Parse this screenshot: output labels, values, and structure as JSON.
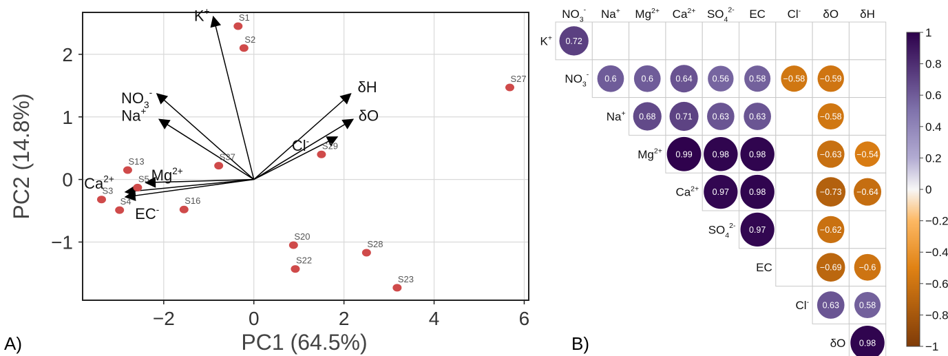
{
  "panel_a": {
    "label": "A)",
    "chart_data": {
      "type": "scatter",
      "xlabel": "PC1 (64.5%)",
      "ylabel": "PC2 (14.8%)",
      "xlim": [
        -3.8,
        6.1
      ],
      "ylim": [
        -1.93,
        2.67
      ],
      "xticks": [
        -2,
        0,
        2,
        4,
        6
      ],
      "yticks": [
        -1,
        0,
        1,
        2
      ],
      "xtick_labels": [
        "−2",
        "0",
        "2",
        "4",
        "6"
      ],
      "ytick_labels": [
        "−1",
        "0",
        "1",
        "2"
      ],
      "grid": true,
      "point_color": "#cf4a4a",
      "points": [
        {
          "name": "S1",
          "x": -0.35,
          "y": 2.45
        },
        {
          "name": "S2",
          "x": -0.22,
          "y": 2.1
        },
        {
          "name": "S27",
          "x": 5.68,
          "y": 1.47
        },
        {
          "name": "S29",
          "x": 1.5,
          "y": 0.4
        },
        {
          "name": "S37",
          "x": -0.78,
          "y": 0.22
        },
        {
          "name": "S13",
          "x": -2.8,
          "y": 0.15
        },
        {
          "name": "S5",
          "x": -2.58,
          "y": -0.13
        },
        {
          "name": "S3",
          "x": -3.38,
          "y": -0.32
        },
        {
          "name": "S4",
          "x": -2.98,
          "y": -0.49
        },
        {
          "name": "S16",
          "x": -1.55,
          "y": -0.48
        },
        {
          "name": "S20",
          "x": 0.88,
          "y": -1.05
        },
        {
          "name": "S22",
          "x": 0.92,
          "y": -1.43
        },
        {
          "name": "S28",
          "x": 2.5,
          "y": -1.17
        },
        {
          "name": "S23",
          "x": 3.18,
          "y": -1.73
        }
      ],
      "loadings": [
        {
          "base": "K",
          "sup": "+",
          "sub": "",
          "x": -0.9,
          "y": 2.6
        },
        {
          "base": "NO",
          "sub": "3",
          "sup": "-",
          "x": -2.15,
          "y": 1.37
        },
        {
          "base": "Na",
          "sup": "+",
          "sub": "",
          "x": -2.1,
          "y": 0.96
        },
        {
          "base": "δH",
          "sup": "",
          "sub": "",
          "x": 2.15,
          "y": 1.37
        },
        {
          "base": "δO",
          "sup": "",
          "sub": "",
          "x": 2.2,
          "y": 0.96
        },
        {
          "base": "Cl",
          "sup": "-",
          "sub": "",
          "x": 1.85,
          "y": 0.68
        },
        {
          "base": "Mg",
          "sup": "2+",
          "sub": "",
          "x": -2.4,
          "y": -0.05
        },
        {
          "base": "Ca",
          "sup": "2+",
          "sub": "",
          "x": -2.85,
          "y": -0.2
        },
        {
          "base": "EC",
          "sup": "-",
          "sub": "",
          "x": -2.85,
          "y": -0.28
        }
      ]
    }
  },
  "panel_b": {
    "label": "B)",
    "chart_data": {
      "type": "heatmap",
      "column_labels": [
        {
          "base": "NO",
          "sub": "3",
          "sup": "-"
        },
        {
          "base": "Na",
          "sub": "",
          "sup": "+"
        },
        {
          "base": "Mg",
          "sub": "",
          "sup": "2+"
        },
        {
          "base": "Ca",
          "sub": "",
          "sup": "2+"
        },
        {
          "base": "SO",
          "sub": "4",
          "sup": "2-"
        },
        {
          "base": "EC",
          "sub": "",
          "sup": ""
        },
        {
          "base": "Cl",
          "sub": "",
          "sup": "-"
        },
        {
          "base": "δO",
          "sub": "",
          "sup": ""
        },
        {
          "base": "δH",
          "sub": "",
          "sup": ""
        }
      ],
      "row_labels": [
        {
          "base": "K",
          "sub": "",
          "sup": "+"
        },
        {
          "base": "NO",
          "sub": "3",
          "sup": "-"
        },
        {
          "base": "Na",
          "sub": "",
          "sup": "+"
        },
        {
          "base": "Mg",
          "sub": "",
          "sup": "2+"
        },
        {
          "base": "Ca",
          "sub": "",
          "sup": "2+"
        },
        {
          "base": "SO",
          "sub": "4",
          "sup": "2-"
        },
        {
          "base": "EC",
          "sub": "",
          "sup": ""
        },
        {
          "base": "Cl",
          "sub": "",
          "sup": "-"
        },
        {
          "base": "δO",
          "sub": "",
          "sup": ""
        }
      ],
      "cells": [
        {
          "row": 0,
          "col": 0,
          "value": 0.72,
          "label": "0.72"
        },
        {
          "row": 1,
          "col": 1,
          "value": 0.6,
          "label": "0.6"
        },
        {
          "row": 1,
          "col": 2,
          "value": 0.6,
          "label": "0.6"
        },
        {
          "row": 1,
          "col": 3,
          "value": 0.64,
          "label": "0.64"
        },
        {
          "row": 1,
          "col": 4,
          "value": 0.56,
          "label": "0.56"
        },
        {
          "row": 1,
          "col": 5,
          "value": 0.58,
          "label": "0.58"
        },
        {
          "row": 1,
          "col": 6,
          "value": -0.58,
          "label": "−0.58"
        },
        {
          "row": 1,
          "col": 7,
          "value": -0.59,
          "label": "−0.59"
        },
        {
          "row": 2,
          "col": 2,
          "value": 0.68,
          "label": "0.68"
        },
        {
          "row": 2,
          "col": 3,
          "value": 0.71,
          "label": "0.71"
        },
        {
          "row": 2,
          "col": 4,
          "value": 0.63,
          "label": "0.63"
        },
        {
          "row": 2,
          "col": 5,
          "value": 0.63,
          "label": "0.63"
        },
        {
          "row": 2,
          "col": 7,
          "value": -0.58,
          "label": "−0.58"
        },
        {
          "row": 3,
          "col": 3,
          "value": 0.99,
          "label": "0.99"
        },
        {
          "row": 3,
          "col": 4,
          "value": 0.98,
          "label": "0.98"
        },
        {
          "row": 3,
          "col": 5,
          "value": 0.98,
          "label": "0.98"
        },
        {
          "row": 3,
          "col": 7,
          "value": -0.63,
          "label": "−0.63"
        },
        {
          "row": 3,
          "col": 8,
          "value": -0.54,
          "label": "−0.54"
        },
        {
          "row": 4,
          "col": 4,
          "value": 0.97,
          "label": "0.97"
        },
        {
          "row": 4,
          "col": 5,
          "value": 0.98,
          "label": "0.98"
        },
        {
          "row": 4,
          "col": 7,
          "value": -0.73,
          "label": "−0.73"
        },
        {
          "row": 4,
          "col": 8,
          "value": -0.64,
          "label": "−0.64"
        },
        {
          "row": 5,
          "col": 5,
          "value": 0.97,
          "label": "0.97"
        },
        {
          "row": 5,
          "col": 7,
          "value": -0.62,
          "label": "−0.62"
        },
        {
          "row": 6,
          "col": 7,
          "value": -0.69,
          "label": "−0.69"
        },
        {
          "row": 6,
          "col": 8,
          "value": -0.6,
          "label": "−0.6"
        },
        {
          "row": 7,
          "col": 7,
          "value": 0.63,
          "label": "0.63"
        },
        {
          "row": 7,
          "col": 8,
          "value": 0.58,
          "label": "0.58"
        },
        {
          "row": 8,
          "col": 8,
          "value": 0.98,
          "label": "0.98"
        }
      ],
      "colorbar": {
        "range": [
          -1,
          1
        ],
        "ticks": [
          1,
          0.8,
          0.6,
          0.4,
          0.2,
          0,
          -0.2,
          -0.4,
          -0.6,
          -0.8,
          -1
        ],
        "tick_labels": [
          "1",
          "0.8",
          "0.6",
          "0.4",
          "0.2",
          "0",
          "−0.2",
          "−0.4",
          "−0.6",
          "−0.8",
          "−1"
        ],
        "colors": {
          "neg1": "#7f3b08",
          "neg05": "#e08214",
          "neg02": "#fdb863",
          "zero": "#f7f7f7",
          "pos02": "#b2abd2",
          "pos05": "#8073ac",
          "pos1": "#2d004b"
        }
      }
    }
  }
}
